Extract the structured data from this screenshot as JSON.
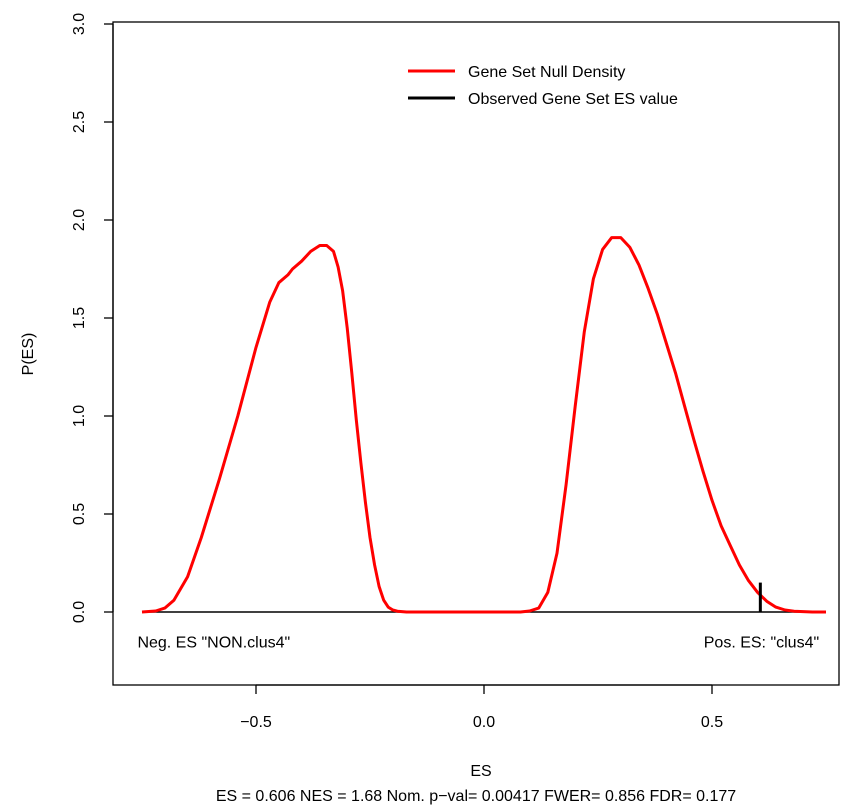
{
  "chart_data": {
    "type": "line",
    "title": "",
    "xlabel": "ES",
    "ylabel": "P(ES)",
    "xlim": [
      -0.8,
      0.8
    ],
    "ylim": [
      -0.38,
      3.0
    ],
    "x_ticks": [
      -0.5,
      0.0,
      0.5
    ],
    "x_tick_labels": [
      "−0.5",
      "0.0",
      "0.5"
    ],
    "y_ticks": [
      0.0,
      0.5,
      1.0,
      1.5,
      2.0,
      2.5,
      3.0
    ],
    "y_tick_labels": [
      "0.0",
      "0.5",
      "1.0",
      "1.5",
      "2.0",
      "2.5",
      "3.0"
    ],
    "grid": false,
    "legend_position": "top-right",
    "colors": {
      "density": "#ff0000",
      "observed": "#000000",
      "baseline": "#000000"
    },
    "series": [
      {
        "name": "Gene Set Null Density",
        "x": [
          -0.75,
          -0.72,
          -0.7,
          -0.68,
          -0.65,
          -0.62,
          -0.58,
          -0.54,
          -0.5,
          -0.47,
          -0.45,
          -0.43,
          -0.42,
          -0.4,
          -0.38,
          -0.36,
          -0.345,
          -0.33,
          -0.32,
          -0.31,
          -0.3,
          -0.29,
          -0.28,
          -0.27,
          -0.26,
          -0.25,
          -0.24,
          -0.23,
          -0.22,
          -0.21,
          -0.2,
          -0.19,
          -0.18,
          -0.17,
          -0.16,
          -0.15,
          -0.12,
          -0.08,
          -0.04,
          0.0,
          0.04,
          0.08,
          0.1,
          0.12,
          0.14,
          0.16,
          0.18,
          0.2,
          0.22,
          0.24,
          0.26,
          0.28,
          0.3,
          0.32,
          0.34,
          0.36,
          0.38,
          0.4,
          0.42,
          0.44,
          0.46,
          0.48,
          0.5,
          0.52,
          0.54,
          0.56,
          0.58,
          0.6,
          0.62,
          0.64,
          0.66,
          0.68,
          0.7,
          0.72,
          0.75
        ],
        "y": [
          0.0,
          0.005,
          0.02,
          0.06,
          0.18,
          0.38,
          0.68,
          1.0,
          1.35,
          1.58,
          1.68,
          1.72,
          1.75,
          1.79,
          1.84,
          1.87,
          1.87,
          1.84,
          1.76,
          1.64,
          1.45,
          1.22,
          0.98,
          0.76,
          0.56,
          0.38,
          0.24,
          0.13,
          0.06,
          0.025,
          0.01,
          0.004,
          0.002,
          0.0,
          0.0,
          0.0,
          0.0,
          0.0,
          0.0,
          0.0,
          0.0,
          0.0,
          0.005,
          0.02,
          0.1,
          0.3,
          0.65,
          1.05,
          1.43,
          1.7,
          1.85,
          1.91,
          1.91,
          1.86,
          1.77,
          1.65,
          1.52,
          1.37,
          1.22,
          1.05,
          0.88,
          0.72,
          0.57,
          0.44,
          0.34,
          0.24,
          0.16,
          0.1,
          0.055,
          0.025,
          0.01,
          0.004,
          0.002,
          0.0,
          0.0
        ]
      }
    ],
    "observed_es": {
      "name": "Observed Gene Set ES value",
      "x": 0.606,
      "y": 0.15
    },
    "annotations": [
      {
        "text": "Neg. ES \"NON.clus4\"",
        "x": -0.76,
        "y": -0.18,
        "anchor": "start"
      },
      {
        "text": "Pos. ES: \"clus4\"",
        "x": 0.735,
        "y": -0.18,
        "anchor": "end"
      }
    ],
    "stats_line": "ES = 0.606  NES = 1.68 Nom. p−val= 0.00417 FWER= 0.856 FDR= 0.177"
  }
}
